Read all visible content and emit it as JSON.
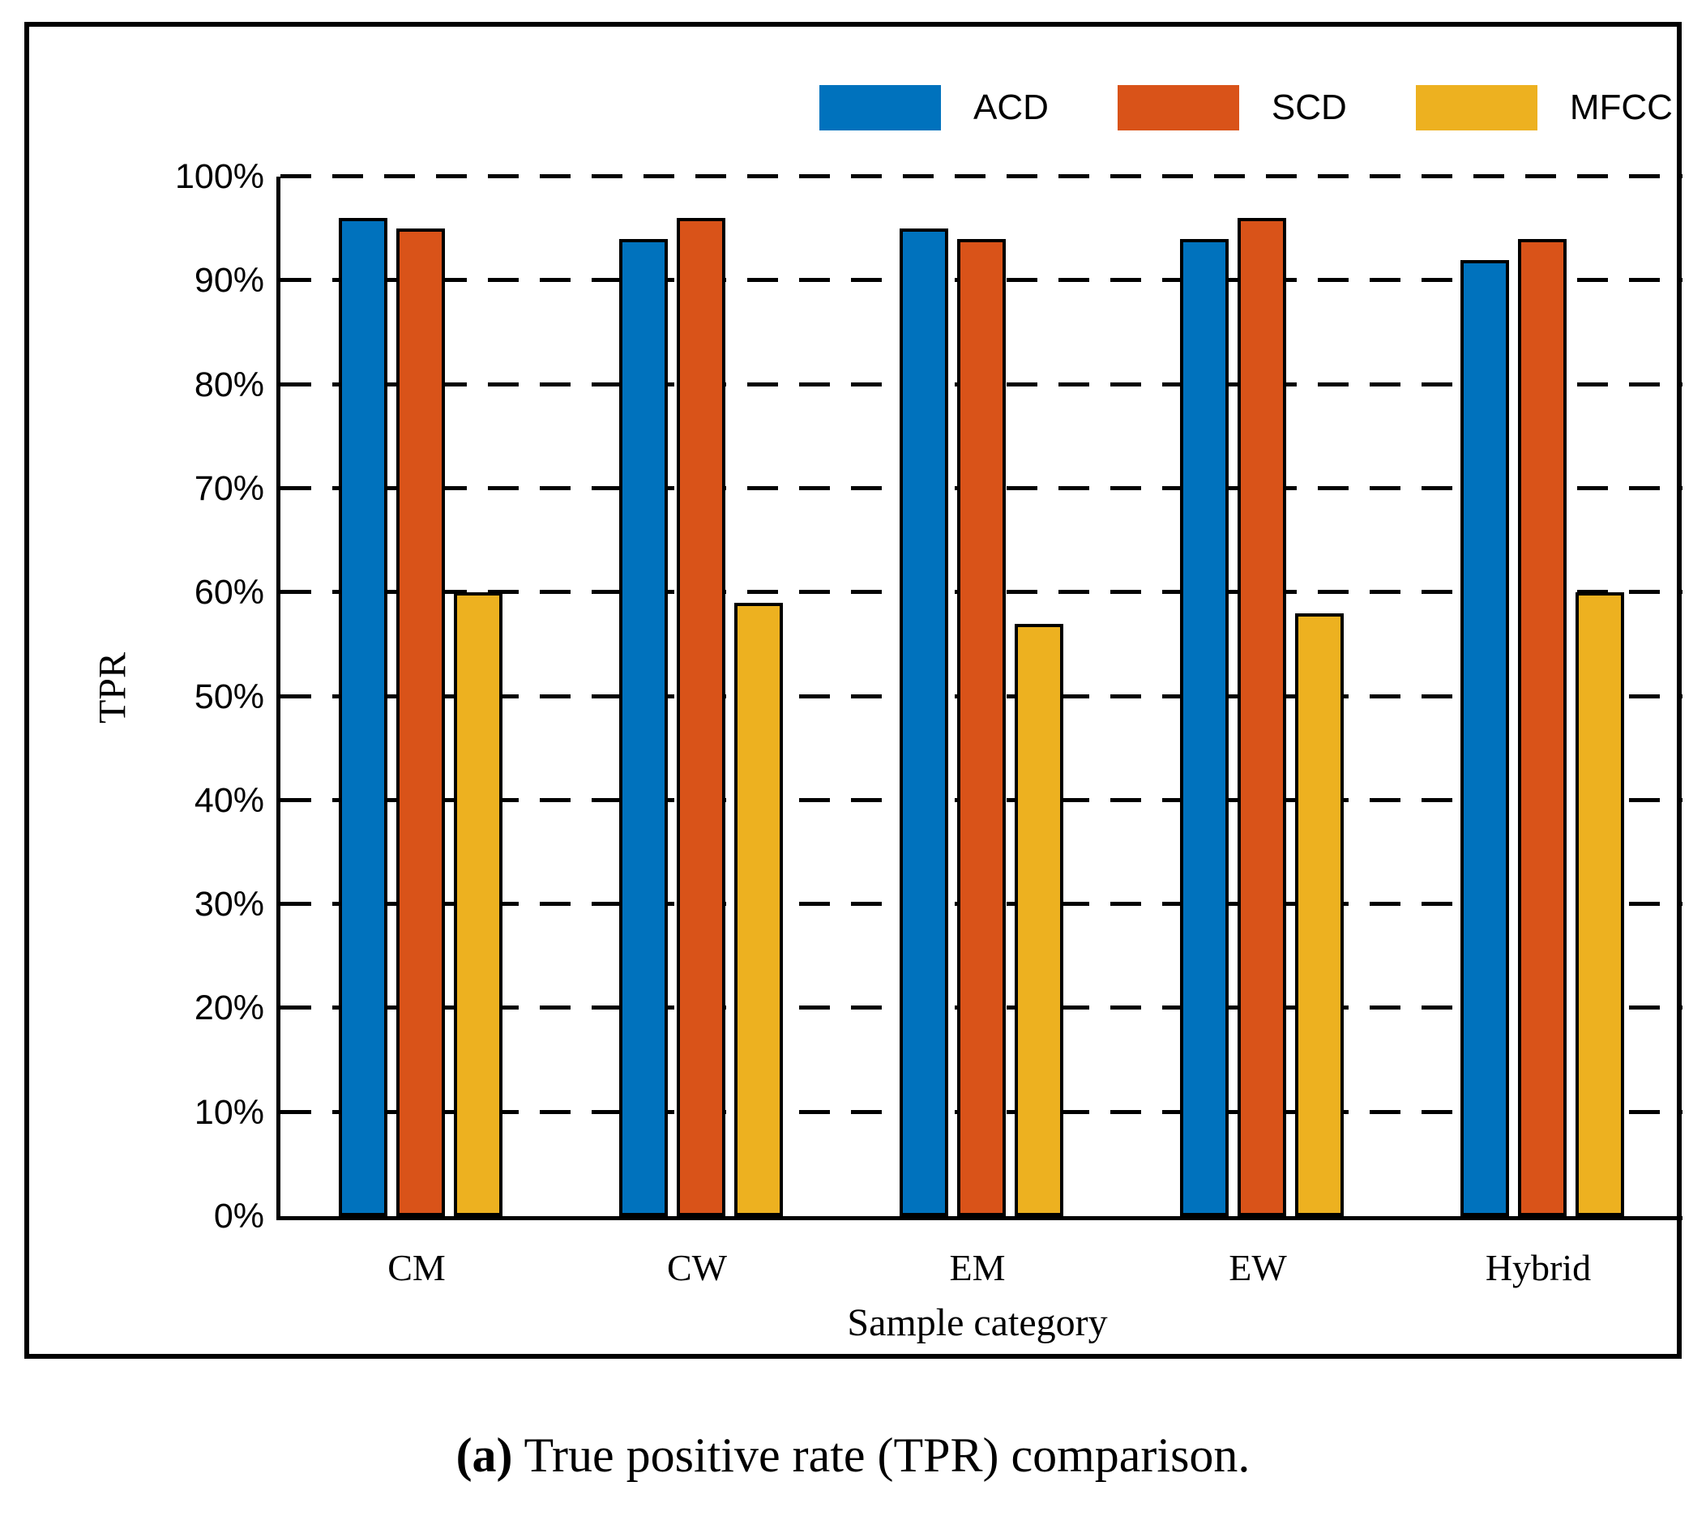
{
  "chart_data": {
    "type": "bar",
    "categories": [
      "CM",
      "CW",
      "EM",
      "EW",
      "Hybrid"
    ],
    "series": [
      {
        "name": "ACD",
        "color": "#0072BD",
        "values": [
          96,
          94,
          95,
          94,
          92
        ]
      },
      {
        "name": "SCD",
        "color": "#D95319",
        "values": [
          95,
          96,
          94,
          96,
          94
        ]
      },
      {
        "name": "MFCC",
        "color": "#EDB120",
        "values": [
          60,
          59,
          57,
          58,
          60
        ]
      }
    ],
    "xlabel": "Sample category",
    "ylabel": "TPR",
    "ylim": [
      0,
      100
    ],
    "ytick_step": 10,
    "ytick_labels": [
      "0%",
      "10%",
      "20%",
      "30%",
      "40%",
      "50%",
      "60%",
      "70%",
      "80%",
      "90%",
      "100%"
    ],
    "grid": "horizontal-dashed",
    "legend_position": "top",
    "bar_outline_color": "#000000"
  },
  "caption": {
    "label": "(a)",
    "text": " True positive rate (TPR) comparison."
  }
}
